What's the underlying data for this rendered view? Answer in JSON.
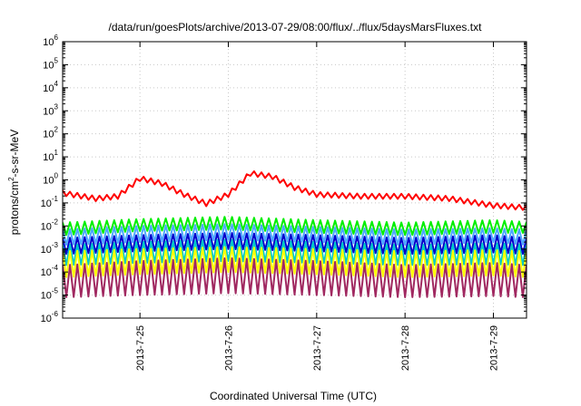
{
  "chart_data": {
    "type": "line",
    "title": "/data/run/goesPlots/archive/2013-07-29/08:00/flux/../flux/5daysMarsFluxes.txt",
    "xlabel": "Coordinated Universal Time (UTC)",
    "ylabel": {
      "prefix": "protons/cm",
      "sup": "2",
      "suffix": "-s-sr-MeV"
    },
    "yscale": "log",
    "ylim": [
      1e-06,
      1000000.0
    ],
    "y_ticks": [
      {
        "base": "10",
        "exp": "-6"
      },
      {
        "base": "10",
        "exp": "-5"
      },
      {
        "base": "10",
        "exp": "-4"
      },
      {
        "base": "10",
        "exp": "-3"
      },
      {
        "base": "10",
        "exp": "-2"
      },
      {
        "base": "10",
        "exp": "-1"
      },
      {
        "base": "10",
        "exp": "0"
      },
      {
        "base": "10",
        "exp": "1"
      },
      {
        "base": "10",
        "exp": "2"
      },
      {
        "base": "10",
        "exp": "3"
      },
      {
        "base": "10",
        "exp": "4"
      },
      {
        "base": "10",
        "exp": "5"
      },
      {
        "base": "10",
        "exp": "6"
      }
    ],
    "xlim": [
      "2013-07-24T03:00",
      "2013-07-29T09:00"
    ],
    "x_ticks": [
      "2013-7-25",
      "2013-7-26",
      "2013-7-27",
      "2013-7-28",
      "2013-7-29"
    ],
    "grid": true,
    "cycles_per_day": 12,
    "series": [
      {
        "color": "#ff0000",
        "style": "spiky",
        "x": [
          "2013-07-24T03:00",
          "2013-07-24T12:00",
          "2013-07-24T18:00",
          "2013-07-25T00:00",
          "2013-07-25T06:00",
          "2013-07-25T12:00",
          "2013-07-25T18:00",
          "2013-07-26T00:00",
          "2013-07-26T06:00",
          "2013-07-26T12:00",
          "2013-07-26T18:00",
          "2013-07-27T00:00",
          "2013-07-27T12:00",
          "2013-07-28T00:00",
          "2013-07-28T12:00",
          "2013-07-29T00:00",
          "2013-07-29T09:00"
        ],
        "y": [
          0.35,
          0.2,
          0.25,
          1.5,
          0.9,
          0.3,
          0.12,
          0.3,
          2.5,
          1.8,
          0.6,
          0.3,
          0.25,
          0.25,
          0.2,
          0.1,
          0.08
        ]
      },
      {
        "color": "#00ee00",
        "style": "sawtooth",
        "x": [
          "2013-07-24T03:00",
          "2013-07-25T00:00",
          "2013-07-26T00:00",
          "2013-07-27T00:00",
          "2013-07-28T00:00",
          "2013-07-29T00:00",
          "2013-07-29T09:00"
        ],
        "peak": [
          0.014,
          0.02,
          0.025,
          0.018,
          0.014,
          0.018,
          0.015
        ],
        "trough": [
          0.004,
          0.006,
          0.007,
          0.005,
          0.004,
          0.005,
          0.005
        ]
      },
      {
        "color": "#4aa8ff",
        "style": "sawtooth",
        "x": [
          "2013-07-24T03:00",
          "2013-07-25T00:00",
          "2013-07-26T00:00",
          "2013-07-27T00:00",
          "2013-07-28T00:00",
          "2013-07-29T00:00",
          "2013-07-29T09:00"
        ],
        "peak": [
          0.007,
          0.01,
          0.012,
          0.009,
          0.007,
          0.008,
          0.007
        ],
        "trough": [
          0.0015,
          0.002,
          0.0025,
          0.002,
          0.0015,
          0.002,
          0.0015
        ]
      },
      {
        "color": "#0000cc",
        "style": "sawtooth",
        "x": [
          "2013-07-24T03:00",
          "2013-07-25T00:00",
          "2013-07-26T00:00",
          "2013-07-27T00:00",
          "2013-07-28T00:00",
          "2013-07-29T00:00",
          "2013-07-29T09:00"
        ],
        "peak": [
          0.003,
          0.004,
          0.005,
          0.004,
          0.003,
          0.004,
          0.003
        ],
        "trough": [
          0.0006,
          0.0008,
          0.001,
          0.0008,
          0.0006,
          0.0007,
          0.0006
        ]
      },
      {
        "color": "#00c8c8",
        "style": "sawtooth",
        "x": [
          "2013-07-24T03:00",
          "2013-07-25T00:00",
          "2013-07-26T00:00",
          "2013-07-27T00:00",
          "2013-07-28T00:00",
          "2013-07-29T00:00",
          "2013-07-29T09:00"
        ],
        "peak": [
          0.0015,
          0.002,
          0.0025,
          0.002,
          0.0015,
          0.0018,
          0.0015
        ],
        "trough": [
          0.0002,
          0.00025,
          0.0003,
          0.00025,
          0.0002,
          0.00022,
          0.0002
        ]
      },
      {
        "color": "#ffff00",
        "style": "sawtooth",
        "x": [
          "2013-07-24T03:00",
          "2013-07-25T00:00",
          "2013-07-26T00:00",
          "2013-07-27T00:00",
          "2013-07-28T00:00",
          "2013-07-29T00:00",
          "2013-07-29T09:00"
        ],
        "peak": [
          0.0008,
          0.001,
          0.0012,
          0.001,
          0.0008,
          0.0009,
          0.0008
        ],
        "trough": [
          6e-05,
          8e-05,
          0.0001,
          8e-05,
          6e-05,
          7e-05,
          6e-05
        ]
      },
      {
        "color": "#a02860",
        "style": "sawtooth",
        "x": [
          "2013-07-24T03:00",
          "2013-07-25T00:00",
          "2013-07-26T00:00",
          "2013-07-27T00:00",
          "2013-07-28T00:00",
          "2013-07-29T00:00",
          "2013-07-29T09:00"
        ],
        "peak": [
          0.0002,
          0.0003,
          0.0004,
          0.0003,
          0.0002,
          0.00025,
          0.0002
        ],
        "trough": [
          8e-06,
          1e-05,
          1.2e-05,
          1e-05,
          8e-06,
          9e-06,
          8e-06
        ]
      }
    ]
  }
}
